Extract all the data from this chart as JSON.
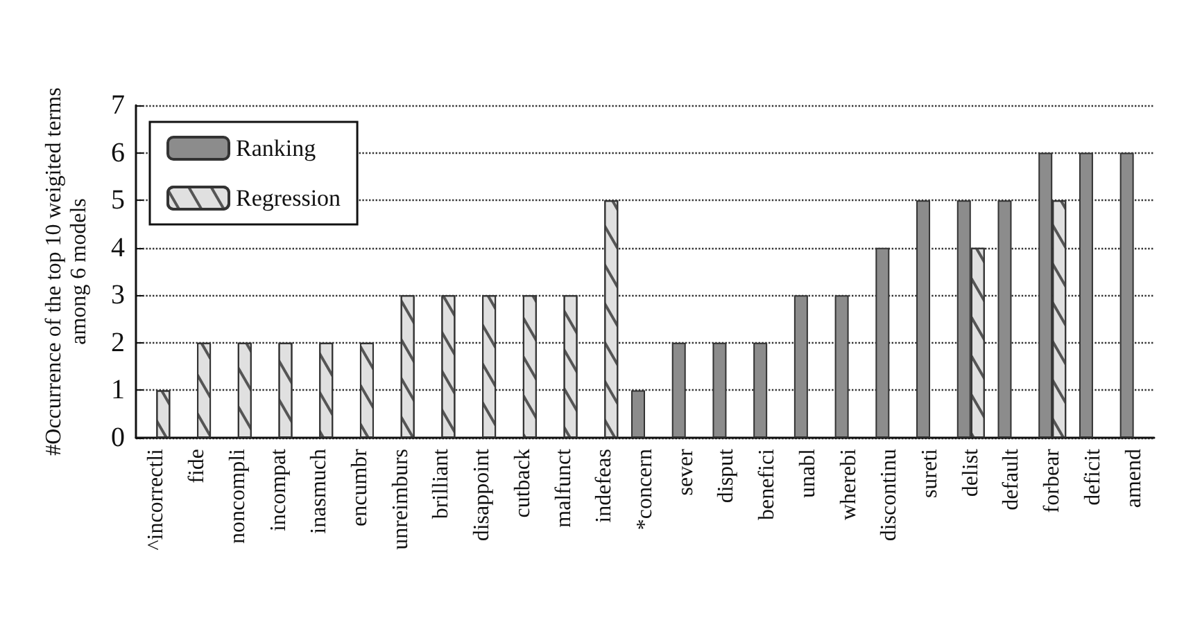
{
  "chart_data": {
    "type": "bar",
    "ylabel": "#Occurrence of the top 10 weigited terms\namong 6 models",
    "categories": [
      "^incorrectli",
      "fide",
      "noncompli",
      "incompat",
      "inasmuch",
      "encumbr",
      "unreimburs",
      "brilliant",
      "disappoint",
      "cutback",
      "malfunct",
      "indefeas",
      "*concern",
      "sever",
      "disput",
      "benefici",
      "unabl",
      "wherebi",
      "discontinu",
      "sureti",
      "delist",
      "default",
      "forbear",
      "deficit",
      "amend"
    ],
    "series": [
      {
        "name": "Ranking",
        "color": "#8c8c8c",
        "values": [
          null,
          null,
          null,
          null,
          null,
          null,
          null,
          null,
          null,
          null,
          null,
          null,
          1,
          2,
          2,
          2,
          3,
          3,
          4,
          5,
          5,
          5,
          6,
          6,
          6
        ]
      },
      {
        "name": "Regression",
        "color": "#e0e0e0",
        "values": [
          1,
          2,
          2,
          2,
          2,
          2,
          3,
          3,
          3,
          3,
          3,
          5,
          null,
          null,
          null,
          null,
          null,
          null,
          null,
          null,
          4,
          null,
          5,
          null,
          null
        ]
      }
    ],
    "ylim": [
      0,
      7
    ],
    "yticks": [
      0,
      1,
      2,
      3,
      4,
      5,
      6,
      7
    ],
    "grid": "y",
    "legend": "top left"
  }
}
